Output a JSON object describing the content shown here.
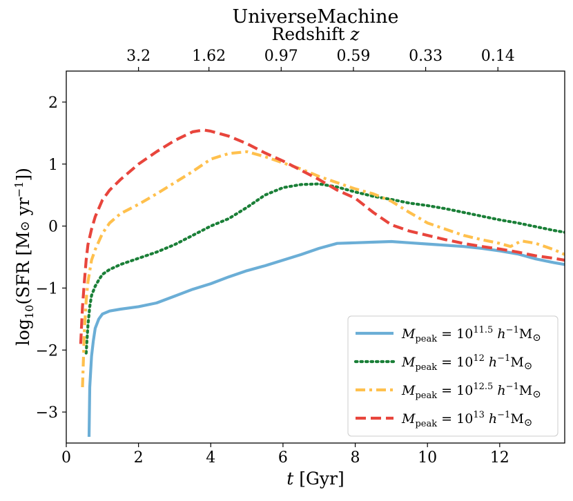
{
  "chart_data": {
    "type": "line",
    "title": "UniverseMachine",
    "top_axis": {
      "label": "Redshift z",
      "label_text": "Redshift ",
      "label_var": "z",
      "ticks": [
        {
          "label": "3.2",
          "t": 2.0
        },
        {
          "label": "1.62",
          "t": 3.95
        },
        {
          "label": "0.97",
          "t": 5.95
        },
        {
          "label": "0.59",
          "t": 7.95
        },
        {
          "label": "0.33",
          "t": 9.95
        },
        {
          "label": "0.14",
          "t": 11.95
        }
      ]
    },
    "xlabel": "t [Gyr]",
    "xlabel_var": "t",
    "xlabel_unit": " [Gyr]",
    "ylabel": "log10(SFR [M⊙ yr⁻¹])",
    "xlim": [
      0,
      13.8
    ],
    "ylim": [
      -3.5,
      2.5
    ],
    "x_ticks": [
      0,
      2,
      4,
      6,
      8,
      10,
      12
    ],
    "x_tick_labels": [
      "0",
      "2",
      "4",
      "6",
      "8",
      "10",
      "12"
    ],
    "y_ticks": [
      -3,
      -2,
      -1,
      0,
      1,
      2
    ],
    "y_tick_labels": [
      "−3",
      "−2",
      "−1",
      "0",
      "1",
      "2"
    ],
    "legend_position": "lower-right",
    "series": [
      {
        "name": "M_peak = 10^11.5 h^-1 M⊙",
        "legend_exp": "11.5",
        "color": "#6baed6",
        "style": "solid",
        "x": [
          0.63,
          0.65,
          0.7,
          0.75,
          0.8,
          0.9,
          1.0,
          1.2,
          1.5,
          2.0,
          2.5,
          3.0,
          3.5,
          4.0,
          4.5,
          5.0,
          5.5,
          6.0,
          6.5,
          7.0,
          7.5,
          8.0,
          8.5,
          9.0,
          9.5,
          10.0,
          10.5,
          11.0,
          11.5,
          12.0,
          12.5,
          13.0,
          13.5,
          13.8
        ],
        "y": [
          -3.4,
          -2.6,
          -2.1,
          -1.85,
          -1.65,
          -1.5,
          -1.42,
          -1.37,
          -1.34,
          -1.3,
          -1.24,
          -1.13,
          -1.02,
          -0.93,
          -0.82,
          -0.72,
          -0.64,
          -0.55,
          -0.46,
          -0.36,
          -0.28,
          -0.27,
          -0.26,
          -0.25,
          -0.27,
          -0.29,
          -0.31,
          -0.33,
          -0.36,
          -0.4,
          -0.45,
          -0.53,
          -0.59,
          -0.62
        ]
      },
      {
        "name": "M_peak = 10^12 h^-1 M⊙",
        "legend_exp": "12",
        "color": "#1a7f37",
        "style": "dotted",
        "x": [
          0.55,
          0.6,
          0.65,
          0.7,
          0.8,
          0.9,
          1.0,
          1.2,
          1.5,
          2.0,
          2.5,
          3.0,
          3.5,
          4.0,
          4.5,
          5.0,
          5.5,
          6.0,
          6.5,
          7.0,
          7.5,
          8.0,
          8.5,
          9.0,
          9.5,
          10.0,
          10.5,
          11.0,
          11.5,
          12.0,
          12.5,
          13.0,
          13.5,
          13.8
        ],
        "y": [
          -2.05,
          -1.6,
          -1.3,
          -1.12,
          -0.97,
          -0.87,
          -0.78,
          -0.7,
          -0.62,
          -0.52,
          -0.42,
          -0.3,
          -0.15,
          0.0,
          0.12,
          0.3,
          0.5,
          0.62,
          0.67,
          0.68,
          0.63,
          0.55,
          0.48,
          0.43,
          0.37,
          0.33,
          0.28,
          0.22,
          0.16,
          0.1,
          0.05,
          -0.01,
          -0.07,
          -0.1
        ]
      },
      {
        "name": "M_peak = 10^12.5 h^-1 M⊙",
        "legend_exp": "12.5",
        "color": "#ffc04d",
        "style": "dashdot",
        "x": [
          0.45,
          0.5,
          0.55,
          0.6,
          0.7,
          0.8,
          1.0,
          1.2,
          1.5,
          2.0,
          2.5,
          3.0,
          3.5,
          4.0,
          4.5,
          5.0,
          5.5,
          6.0,
          6.5,
          7.0,
          7.5,
          8.0,
          8.5,
          9.0,
          9.5,
          10.0,
          10.5,
          11.0,
          11.5,
          12.0,
          12.3,
          12.6,
          13.0,
          13.5,
          13.8
        ],
        "y": [
          -2.6,
          -1.7,
          -1.2,
          -0.9,
          -0.55,
          -0.38,
          -0.12,
          0.05,
          0.2,
          0.35,
          0.52,
          0.7,
          0.88,
          1.08,
          1.17,
          1.2,
          1.12,
          1.02,
          0.92,
          0.8,
          0.7,
          0.6,
          0.52,
          0.4,
          0.22,
          0.05,
          -0.05,
          -0.15,
          -0.22,
          -0.28,
          -0.33,
          -0.24,
          -0.28,
          -0.38,
          -0.46
        ]
      },
      {
        "name": "M_peak = 10^13 h^-1 M⊙",
        "legend_exp": "13",
        "color": "#e8453c",
        "style": "dashed",
        "x": [
          0.4,
          0.45,
          0.5,
          0.55,
          0.6,
          0.7,
          0.8,
          1.0,
          1.2,
          1.5,
          2.0,
          2.5,
          3.0,
          3.5,
          3.8,
          4.0,
          4.5,
          5.0,
          5.5,
          6.0,
          6.5,
          7.0,
          7.5,
          8.0,
          8.5,
          9.0,
          9.5,
          10.0,
          10.5,
          11.0,
          11.5,
          12.0,
          12.5,
          13.0,
          13.5,
          13.8
        ],
        "y": [
          -1.9,
          -1.3,
          -0.9,
          -0.55,
          -0.3,
          -0.05,
          0.15,
          0.42,
          0.58,
          0.75,
          1.0,
          1.2,
          1.38,
          1.52,
          1.55,
          1.53,
          1.45,
          1.33,
          1.18,
          1.05,
          0.9,
          0.75,
          0.58,
          0.45,
          0.22,
          0.02,
          -0.08,
          -0.15,
          -0.22,
          -0.28,
          -0.33,
          -0.37,
          -0.42,
          -0.48,
          -0.52,
          -0.55
        ]
      }
    ]
  }
}
